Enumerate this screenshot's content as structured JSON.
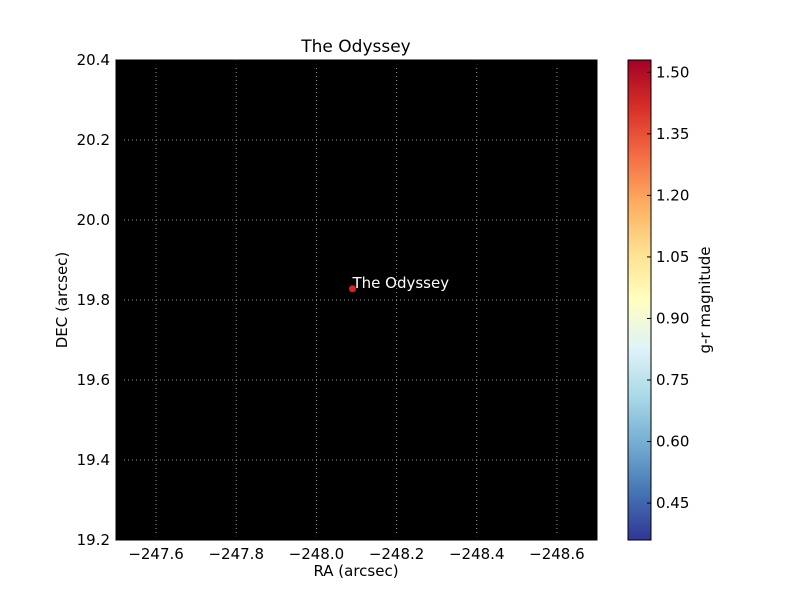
{
  "chart_data": {
    "type": "scatter",
    "title": "The Odyssey",
    "xlabel": "RA (arcsec)",
    "ylabel": "DEC (arcsec)",
    "xlim": [
      -247.5,
      -248.7
    ],
    "ylim": [
      19.2,
      20.4
    ],
    "x_ticks": [
      -247.6,
      -247.8,
      -248.0,
      -248.2,
      -248.4,
      -248.6
    ],
    "x_tick_labels": [
      "−247.6",
      "−247.8",
      "−248.0",
      "−248.2",
      "−248.4",
      "−248.6"
    ],
    "y_ticks": [
      19.2,
      19.4,
      19.6,
      19.8,
      20.0,
      20.2,
      20.4
    ],
    "y_tick_labels": [
      "19.2",
      "19.4",
      "19.6",
      "19.8",
      "20.0",
      "20.2",
      "20.4"
    ],
    "grid": true,
    "background_color": "#000000",
    "grid_color": "#9a9a9a",
    "points": [
      {
        "x": -248.09,
        "y": 19.828,
        "color_value": 1.53,
        "label": "The Odyssey"
      }
    ],
    "colorbar": {
      "label": "g-r magnitude",
      "colormap": "RdYlBu_r",
      "range": [
        0.36,
        1.53
      ],
      "ticks": [
        0.45,
        0.6,
        0.75,
        0.9,
        1.05,
        1.2,
        1.35,
        1.5
      ],
      "tick_labels": [
        "0.45",
        "0.60",
        "0.75",
        "0.90",
        "1.05",
        "1.20",
        "1.35",
        "1.50"
      ]
    },
    "marker_color": "#e0201c",
    "label_color": "#ffffff"
  }
}
